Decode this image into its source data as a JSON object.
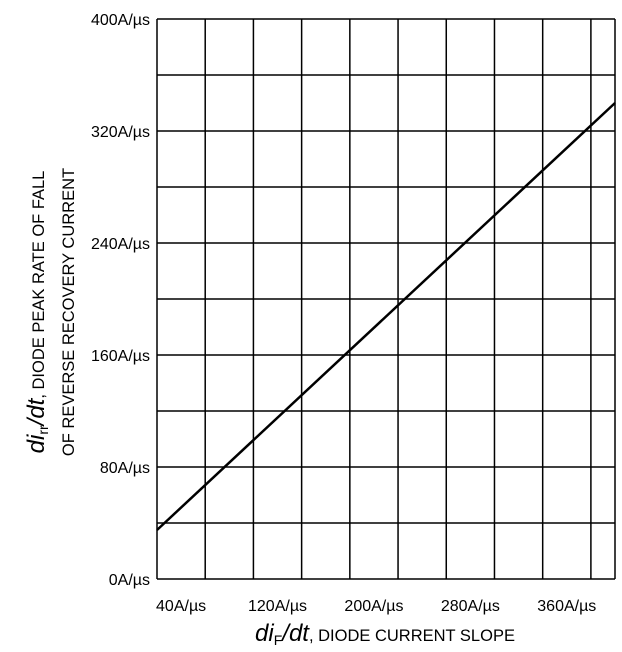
{
  "chart_data": {
    "type": "line",
    "xlabel": {
      "symbol_prefix": "di",
      "symbol_subscript": "F",
      "symbol_suffix": "/dt",
      "text": ", DIODE CURRENT SLOPE"
    },
    "ylabel": {
      "symbol_prefix": "di",
      "symbol_subscript": "rr",
      "symbol_suffix": "/dt",
      "line1": ", DIODE PEAK RATE OF FALL",
      "line2": "OF REVERSE RECOVERY CURRENT"
    },
    "xlim": [
      20,
      400
    ],
    "ylim": [
      0,
      400
    ],
    "x_tick_values": [
      40,
      120,
      200,
      280,
      360
    ],
    "x_tick_labels": [
      "40A/µs",
      "120A/µs",
      "200A/µs",
      "280A/µs",
      "360A/µs"
    ],
    "x_gridlines": [
      20,
      60,
      100,
      140,
      180,
      220,
      260,
      300,
      340,
      380,
      400
    ],
    "y_tick_values": [
      0,
      80,
      160,
      240,
      320,
      400
    ],
    "y_tick_labels": [
      "0A/µs",
      "80A/µs",
      "160A/µs",
      "240A/µs",
      "320A/µs",
      "400A/µs"
    ],
    "y_gridlines": [
      0,
      40,
      80,
      120,
      160,
      200,
      240,
      280,
      320,
      360,
      400
    ],
    "grid": true,
    "series": [
      {
        "x": [
          20,
          400
        ],
        "y": [
          35,
          340
        ]
      }
    ]
  }
}
